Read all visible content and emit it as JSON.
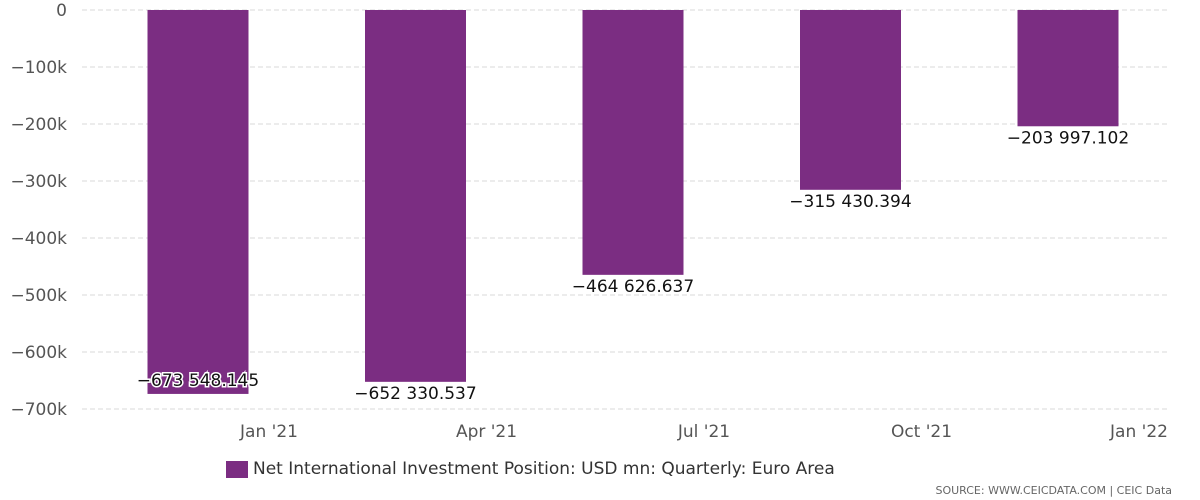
{
  "chart_data": {
    "type": "bar",
    "categories": [
      "Jan '21",
      "Apr '21",
      "Jul '21",
      "Oct '21",
      "Jan '22"
    ],
    "values": [
      -673548.145,
      -652330.537,
      -464626.637,
      -315430.394,
      -203997.102
    ],
    "value_labels": [
      "−673 548.145",
      "−652 330.537",
      "−464 626.637",
      "−315 430.394",
      "−203 997.102"
    ],
    "y_ticks": [
      0,
      -100000,
      -200000,
      -300000,
      -400000,
      -500000,
      -600000,
      -700000
    ],
    "y_tick_labels": [
      "0",
      "−100k",
      "−200k",
      "−300k",
      "−400k",
      "−500k",
      "−600k",
      "−700k"
    ],
    "ylim": [
      -700000,
      0
    ],
    "grid": true,
    "legend_position": "bottom",
    "series": [
      {
        "name": "Net International Investment Position: USD mn: Quarterly: Euro Area",
        "color": "#7b2d82"
      }
    ]
  },
  "legend": {
    "label": "Net International Investment Position: USD mn: Quarterly: Euro Area",
    "color": "#7b2d82"
  },
  "source": "SOURCE: WWW.CEICDATA.COM | CEIC Data"
}
